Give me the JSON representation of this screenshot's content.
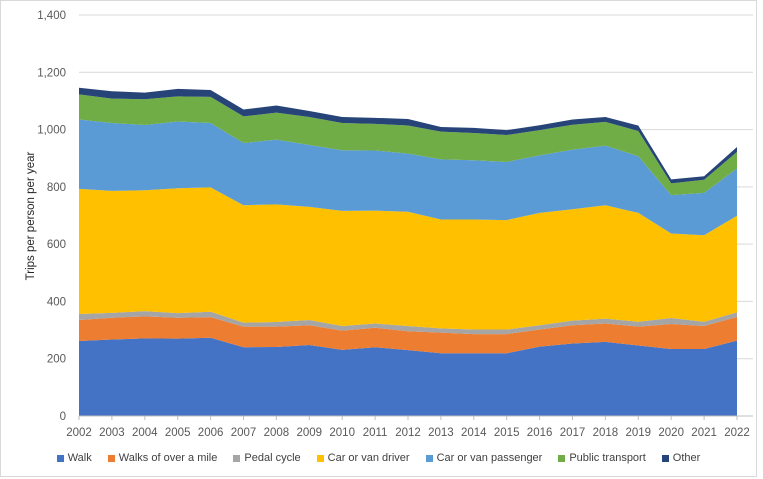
{
  "chart_data": {
    "type": "area",
    "stacked": true,
    "title": "",
    "xlabel": "",
    "ylabel": "Trips per person per year",
    "ylim": [
      0,
      1400
    ],
    "yticks": [
      "0",
      "200",
      "400",
      "600",
      "800",
      "1,000",
      "1,200",
      "1,400"
    ],
    "grid": true,
    "legend": "bottom",
    "x": [
      "2002",
      "2003",
      "2004",
      "2005",
      "2006",
      "2007",
      "2008",
      "2009",
      "2010",
      "2011",
      "2012",
      "2013",
      "2014",
      "2015",
      "2016",
      "2017",
      "2018",
      "2019",
      "2020",
      "2021",
      "2022"
    ],
    "series": [
      {
        "name": "Walk",
        "color": "#4472c4",
        "values": [
          262,
          267,
          271,
          270,
          273,
          240,
          241,
          248,
          231,
          240,
          230,
          219,
          219,
          219,
          242,
          253,
          259,
          246,
          234,
          234,
          263
        ]
      },
      {
        "name": "Walks of over a mile",
        "color": "#ed7d31",
        "values": [
          73,
          76,
          77,
          73,
          72,
          72,
          71,
          69,
          67,
          68,
          66,
          72,
          67,
          67,
          60,
          64,
          64,
          66,
          87,
          80,
          83
        ]
      },
      {
        "name": "Pedal cycle",
        "color": "#a5a5a5",
        "values": [
          21,
          17,
          18,
          16,
          19,
          14,
          16,
          18,
          16,
          15,
          18,
          15,
          16,
          16,
          15,
          16,
          17,
          17,
          21,
          15,
          16
        ]
      },
      {
        "name": "Car or van driver",
        "color": "#ffc000",
        "values": [
          437,
          426,
          422,
          436,
          434,
          410,
          411,
          395,
          402,
          394,
          399,
          380,
          384,
          382,
          392,
          389,
          396,
          380,
          295,
          302,
          337
        ]
      },
      {
        "name": "Car or van passenger",
        "color": "#5b9bd5",
        "values": [
          242,
          237,
          228,
          233,
          225,
          217,
          226,
          216,
          212,
          210,
          203,
          210,
          207,
          203,
          201,
          208,
          208,
          198,
          134,
          148,
          165
        ]
      },
      {
        "name": "Public transport",
        "color": "#70ad47",
        "values": [
          88,
          85,
          90,
          88,
          91,
          93,
          94,
          98,
          95,
          93,
          98,
          97,
          95,
          94,
          88,
          87,
          83,
          88,
          41,
          46,
          58
        ]
      },
      {
        "name": "Other",
        "color": "#264478",
        "values": [
          23,
          26,
          23,
          26,
          24,
          24,
          25,
          21,
          21,
          21,
          23,
          16,
          18,
          17,
          17,
          18,
          17,
          19,
          14,
          12,
          17
        ]
      }
    ]
  }
}
